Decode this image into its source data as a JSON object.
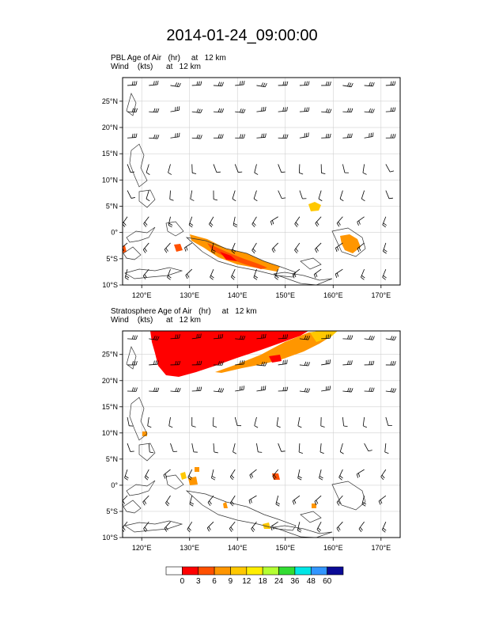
{
  "title": "2014-01-24_09:00:00",
  "panels": [
    {
      "id": "pbl",
      "line1": "PBL Age of Air   (hr)     at   12 km",
      "line2": "Wind    (kts)      at   12 km"
    },
    {
      "id": "strat",
      "line1": "Stratosphere Age of Air   (hr)     at   12 km",
      "line2": "Wind    (kts)      at   12 km"
    }
  ],
  "lat_labels": [
    "25°N",
    "20°N",
    "15°N",
    "10°N",
    "5°N",
    "0°",
    "5°S",
    "10°S"
  ],
  "lat_values": [
    25,
    20,
    15,
    10,
    5,
    0,
    -5,
    -10
  ],
  "lon_labels": [
    "120°E",
    "130°E",
    "140°E",
    "150°E",
    "160°E",
    "170°E"
  ],
  "lon_values": [
    120,
    130,
    140,
    150,
    160,
    170
  ],
  "extent": {
    "lon": [
      116,
      174
    ],
    "lat": [
      -10,
      29.5
    ]
  },
  "colorbar": {
    "labels": [
      "0",
      "3",
      "6",
      "9",
      "12",
      "18",
      "24",
      "36",
      "48",
      "60"
    ],
    "colors": [
      "#ffffff",
      "#ff0000",
      "#ff5000",
      "#ff9600",
      "#ffc800",
      "#ffee00",
      "#b4ff32",
      "#32dc32",
      "#00e6e6",
      "#3296ff",
      "#0a0a96"
    ]
  },
  "chart_data": [
    {
      "type": "map",
      "title": "PBL Age of Air (hr) at 12 km",
      "field_regions": [
        {
          "lon": 134,
          "lat": -1,
          "category": "3-6"
        },
        {
          "lon": 141,
          "lat": -3.5,
          "category": "3-9"
        },
        {
          "lon": 145,
          "lat": -4.5,
          "category": "3-9"
        },
        {
          "lon": 129,
          "lat": -3,
          "category": "3-6"
        },
        {
          "lon": 121,
          "lat": -3,
          "category": "3-6"
        },
        {
          "lon": 157,
          "lat": 4.5,
          "category": "6-9"
        },
        {
          "lon": 163,
          "lat": -2,
          "category": "6-9"
        }
      ]
    },
    {
      "type": "map",
      "title": "Stratosphere Age of Air (hr) at 12 km",
      "field_regions": [
        {
          "lon": 140,
          "lat": 26,
          "category": "0-3"
        },
        {
          "lon": 152,
          "lat": 27,
          "category": "3-9"
        },
        {
          "lon": 149,
          "lat": 24,
          "category": "0-6"
        },
        {
          "lon": 133,
          "lat": 2,
          "category": "6-12"
        },
        {
          "lon": 149,
          "lat": 1.5,
          "category": "0-6"
        },
        {
          "lon": 128,
          "lat": 9,
          "category": "6-9"
        }
      ]
    }
  ]
}
